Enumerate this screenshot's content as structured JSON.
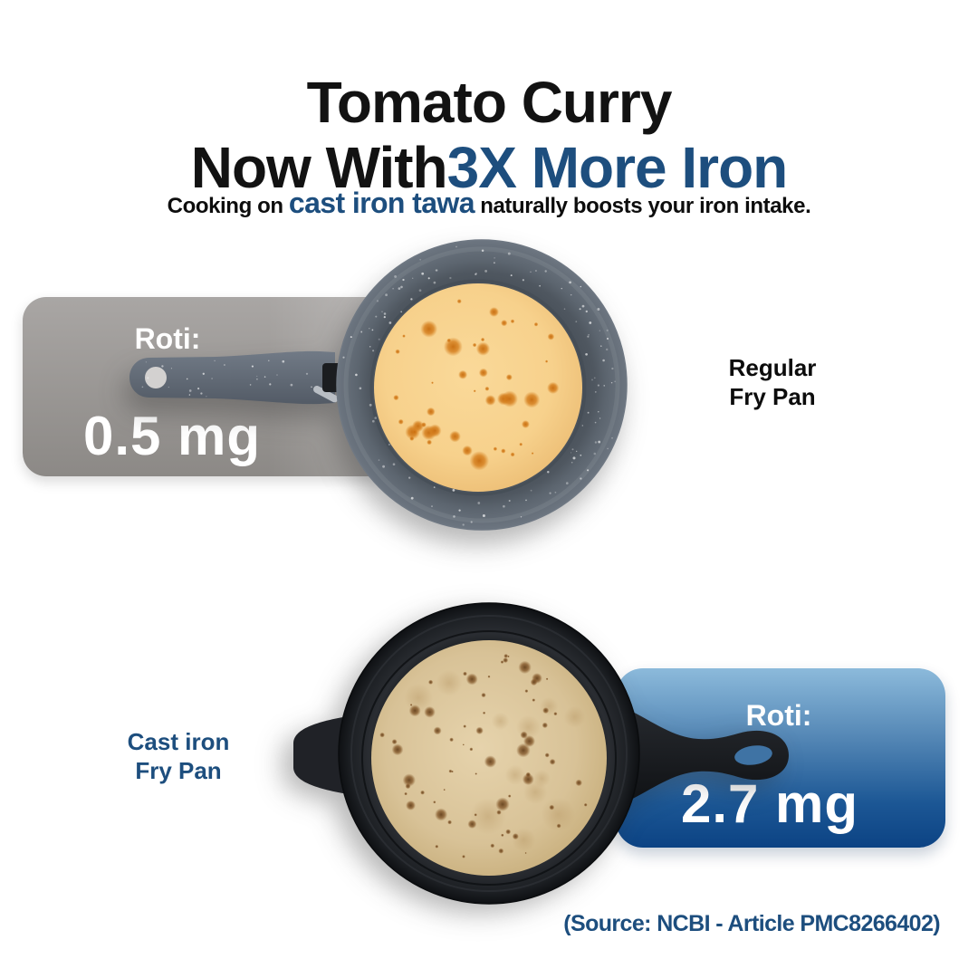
{
  "header": {
    "title_line1": "Tomato Curry",
    "title_line2_black": "Now With",
    "title_line2_accent": "3X More Iron",
    "subtitle_prefix": "Cooking on",
    "subtitle_accent": "cast iron tawa",
    "subtitle_suffix": "naturally boosts your iron intake."
  },
  "comparison": {
    "regular": {
      "label": "Roti:",
      "value": "0.5 mg",
      "pan_name_line1": "Regular",
      "pan_name_line2": "Fry Pan"
    },
    "cast_iron": {
      "label": "Roti:",
      "value": "2.7 mg",
      "pan_name_line1": "Cast iron",
      "pan_name_line2": "Fry Pan"
    }
  },
  "footer": {
    "source": "(Source: NCBI - Article PMC8266402)"
  },
  "colors": {
    "accent_blue": "#1d4e7e",
    "panel_blue_top": "#8cbadb",
    "panel_blue_bottom": "#0c4384",
    "panel_gray_top": "#a9a6a4",
    "panel_gray_bottom": "#8c8986",
    "value_text": "#ffffff"
  }
}
